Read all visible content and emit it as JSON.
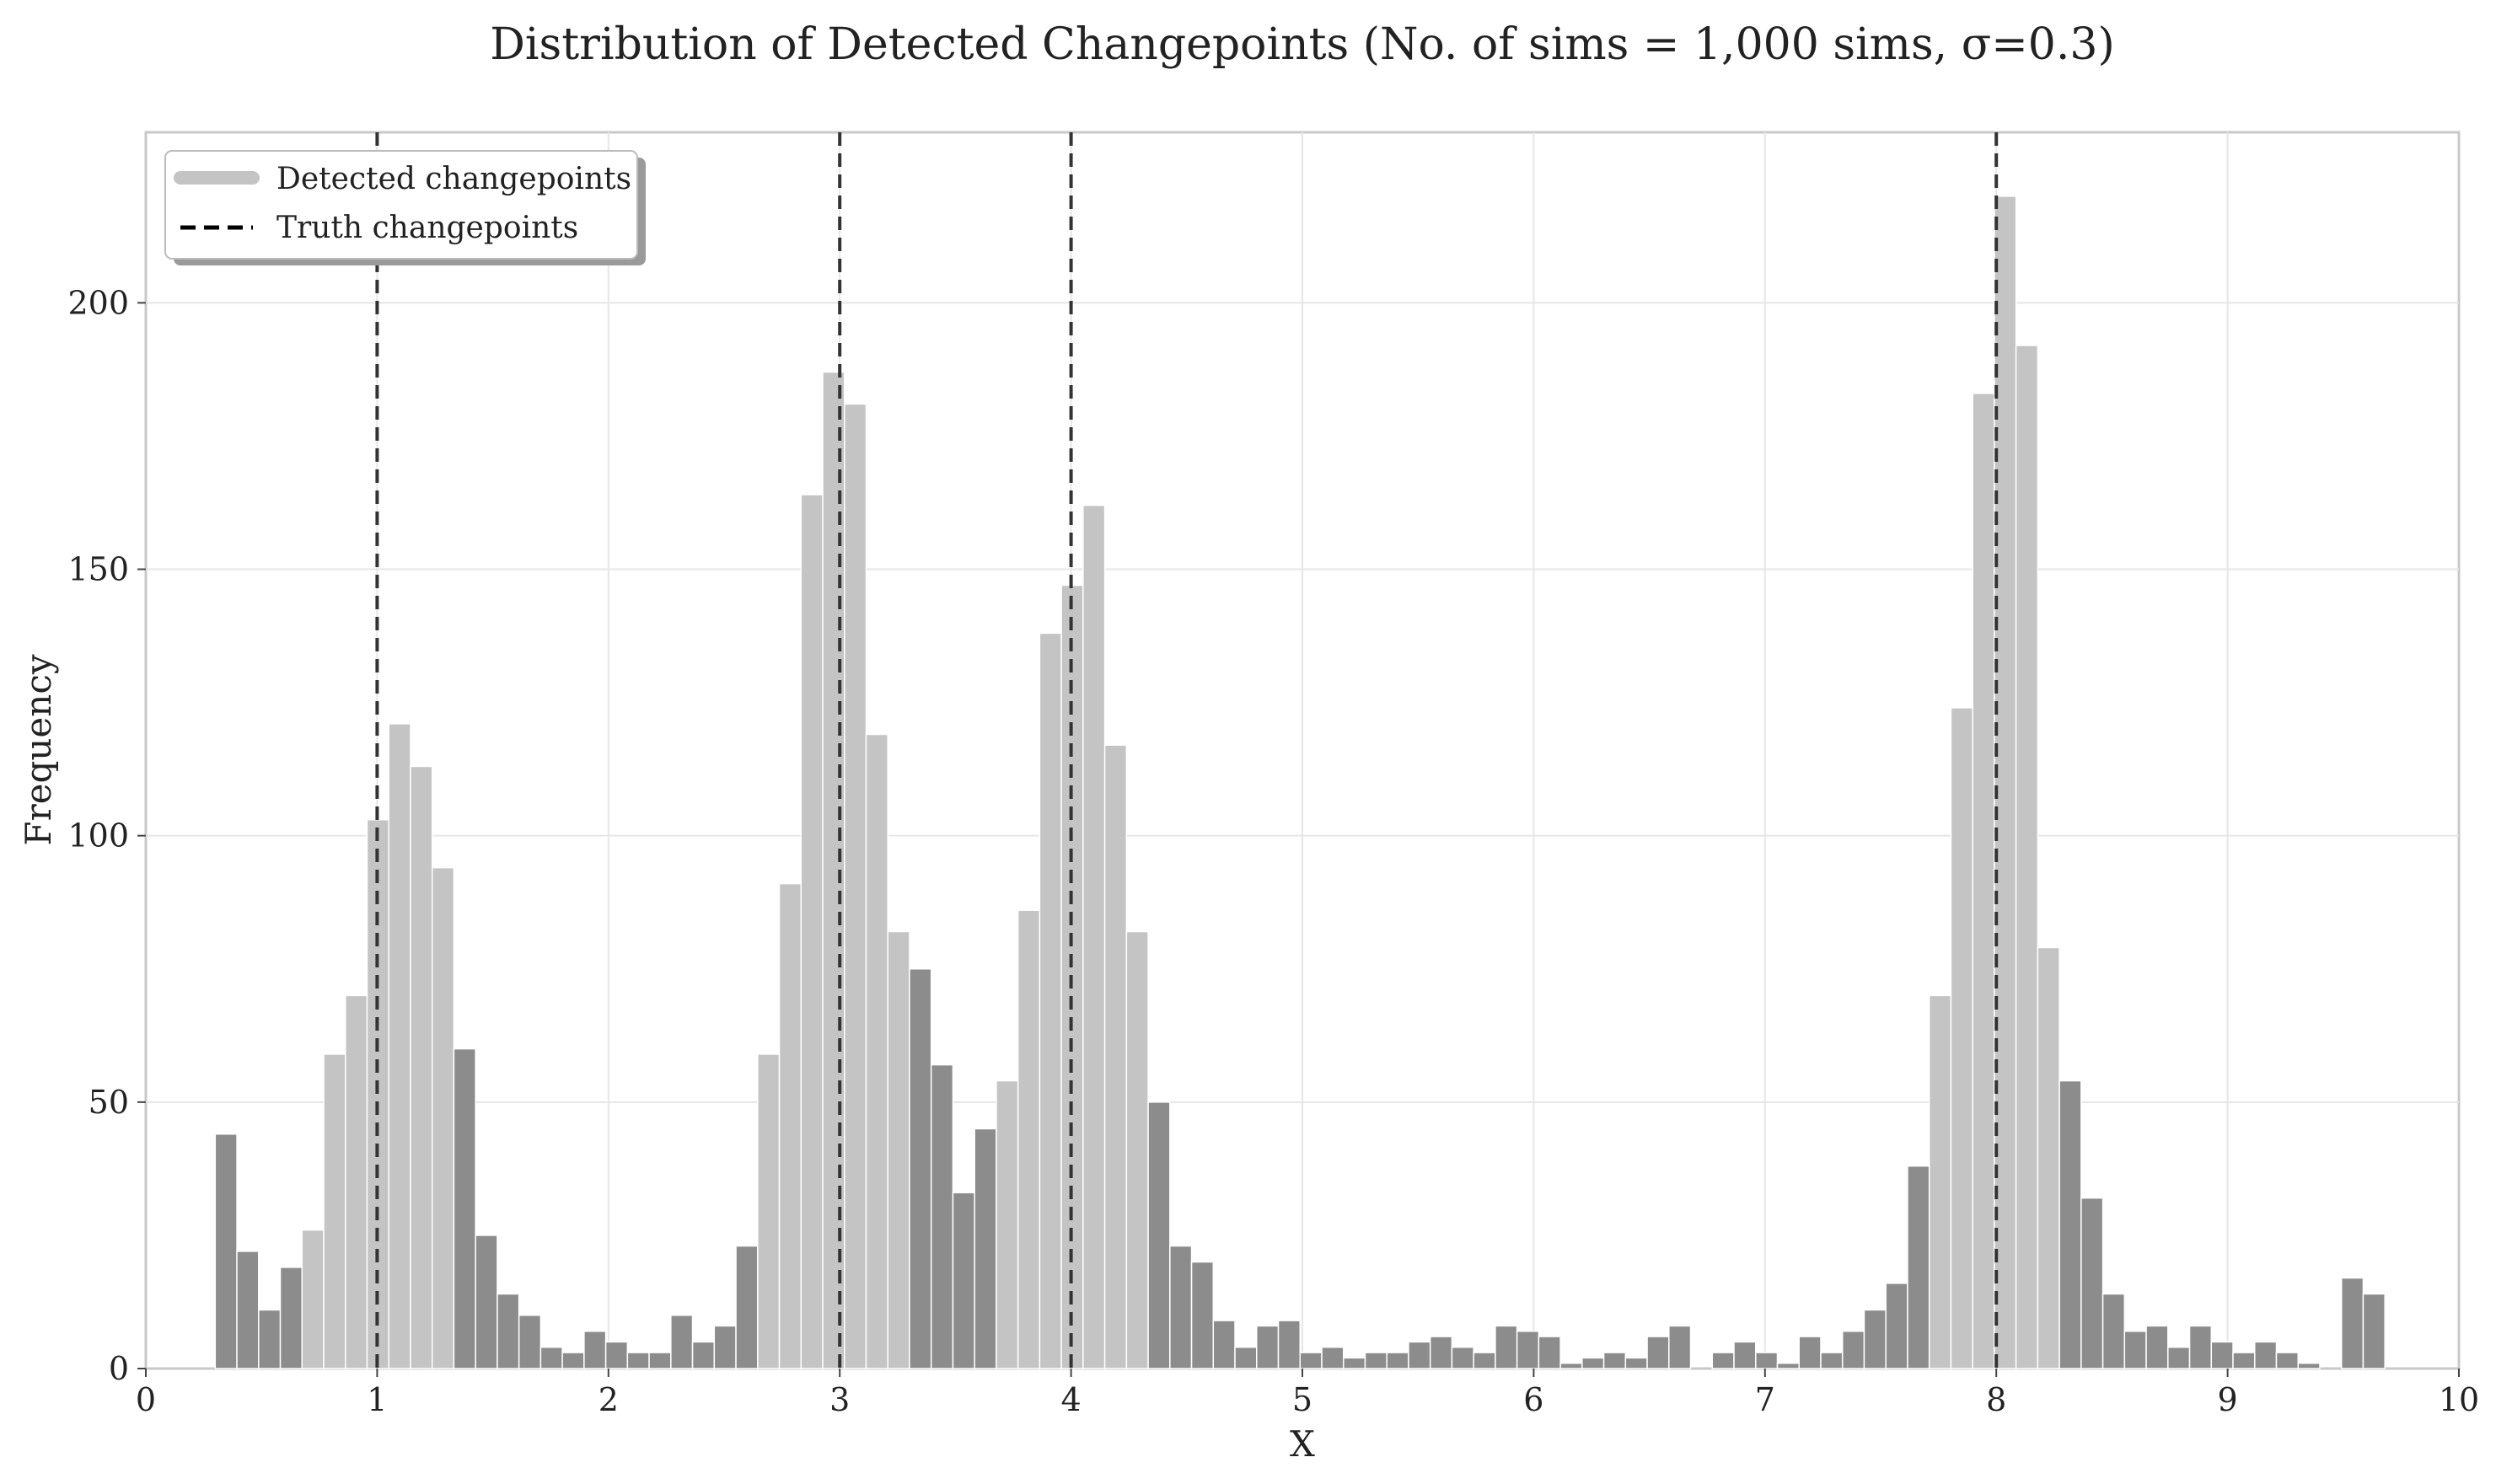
{
  "chart_data": {
    "type": "bar",
    "title": "Distribution of Detected Changepoints (No. of sims = 1,000 sims, σ=0.3)",
    "xlabel": "X",
    "ylabel": "Frequency",
    "xlim": [
      0,
      10
    ],
    "ylim": [
      0,
      232
    ],
    "x_ticks": [
      "0",
      "1",
      "2",
      "3",
      "4",
      "5",
      "6",
      "7",
      "8",
      "9",
      "10"
    ],
    "y_ticks": [
      "0",
      "50",
      "100",
      "150",
      "200"
    ],
    "grid": true,
    "legend_position": "top-left",
    "bin_start": 0.3,
    "bin_width": 0.0938,
    "counts": [
      44,
      22,
      11,
      19,
      26,
      59,
      70,
      103,
      121,
      113,
      94,
      60,
      25,
      14,
      10,
      4,
      3,
      7,
      5,
      3,
      3,
      10,
      5,
      8,
      23,
      59,
      91,
      164,
      187,
      181,
      119,
      82,
      75,
      57,
      33,
      45,
      54,
      86,
      138,
      147,
      162,
      117,
      82,
      50,
      23,
      20,
      9,
      4,
      8,
      9,
      3,
      4,
      2,
      3,
      3,
      5,
      6,
      4,
      3,
      8,
      7,
      6,
      1,
      2,
      3,
      2,
      6,
      8,
      0,
      3,
      5,
      3,
      1,
      6,
      3,
      7,
      11,
      16,
      38,
      70,
      124,
      183,
      220,
      192,
      79,
      54,
      32,
      14,
      7,
      8,
      4,
      8,
      5,
      3,
      5,
      3,
      1,
      0,
      17,
      14
    ],
    "highlight_ranges": [
      [
        0.7,
        1.35
      ],
      [
        2.6,
        3.3
      ],
      [
        3.7,
        4.35
      ],
      [
        7.75,
        8.3
      ]
    ],
    "truth_changepoints": [
      1,
      3,
      4,
      8
    ],
    "series": [
      {
        "name": "Detected changepoints",
        "color": "#c4c4c4"
      },
      {
        "name": "Truth changepoints",
        "color": "#000000",
        "style": "dashed"
      }
    ],
    "colors": {
      "bar_near": "#c4c4c4",
      "bar_far": "#8c8c8c",
      "truth_line": "#333333",
      "grid": "#e6e6e6",
      "frame": "#c8c8c8"
    }
  }
}
